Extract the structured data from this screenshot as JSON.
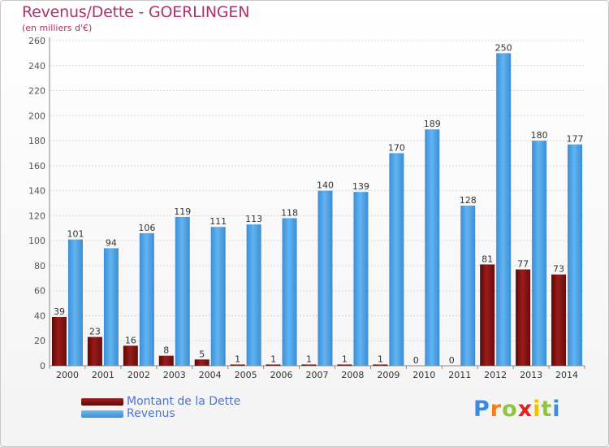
{
  "header": {
    "title": "Revenus/Dette - GOERLINGEN",
    "subtitle": "(en milliers d'€)"
  },
  "legend": {
    "dette_label": "Montant de la Dette",
    "revenus_label": "Revenus"
  },
  "logo": {
    "letters": [
      "P",
      "r",
      "o",
      "x",
      "i",
      "t",
      "i"
    ],
    "colors": [
      "#3d8be0",
      "#ef7f1a",
      "#8cc63f",
      "#e2231a",
      "#f2c100",
      "#8cc63f",
      "#3d8be0"
    ]
  },
  "colors": {
    "dette": "#7a1010",
    "revenus": "#4aa0e6",
    "title": "#b0306a",
    "legend_text": "#4e73d8"
  },
  "chart_data": {
    "type": "bar",
    "title": "Revenus/Dette - GOERLINGEN",
    "subtitle": "(en milliers d'€)",
    "categories": [
      "2000",
      "2001",
      "2002",
      "2003",
      "2004",
      "2005",
      "2006",
      "2007",
      "2008",
      "2009",
      "2010",
      "2011",
      "2012",
      "2013",
      "2014"
    ],
    "series": [
      {
        "name": "Montant de la Dette",
        "values": [
          39,
          23,
          16,
          8,
          5,
          1,
          1,
          1,
          1,
          1,
          0,
          0,
          81,
          77,
          73
        ]
      },
      {
        "name": "Revenus",
        "values": [
          101,
          94,
          106,
          119,
          111,
          113,
          118,
          140,
          139,
          170,
          189,
          128,
          250,
          180,
          177
        ]
      }
    ],
    "ylim": [
      0,
      260
    ],
    "yticks": [
      0,
      20,
      40,
      60,
      80,
      100,
      120,
      140,
      160,
      180,
      200,
      220,
      240,
      260
    ],
    "grid": true,
    "legend_position": "bottom-left"
  }
}
